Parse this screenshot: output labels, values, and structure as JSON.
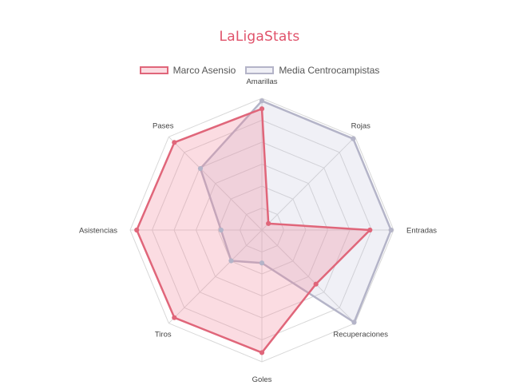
{
  "title": "LaLigaStats",
  "colors": {
    "title": "#e0526a",
    "grid": "#d8d8d8",
    "axis_text": "#444444"
  },
  "chart_data": {
    "type": "radar",
    "axes": [
      "Amarillas",
      "Rojas",
      "Entradas",
      "Recuperaciones",
      "Goles",
      "Tiros",
      "Asistencias",
      "Pases"
    ],
    "rmin": 0,
    "rmax": 1,
    "grid_levels": 6,
    "legend_position": "top",
    "series": [
      {
        "name": "Marco Asensio",
        "values": [
          0.92,
          0.07,
          0.82,
          0.58,
          0.93,
          0.94,
          0.95,
          0.94
        ],
        "stroke": "#e0667a",
        "fill": "rgba(240, 130, 150, 0.28)"
      },
      {
        "name": "Media Centrocampistas",
        "values": [
          0.98,
          0.98,
          0.98,
          0.99,
          0.25,
          0.33,
          0.31,
          0.66
        ],
        "stroke": "#b4b4c8",
        "fill": "rgba(185, 185, 215, 0.22)"
      }
    ]
  }
}
